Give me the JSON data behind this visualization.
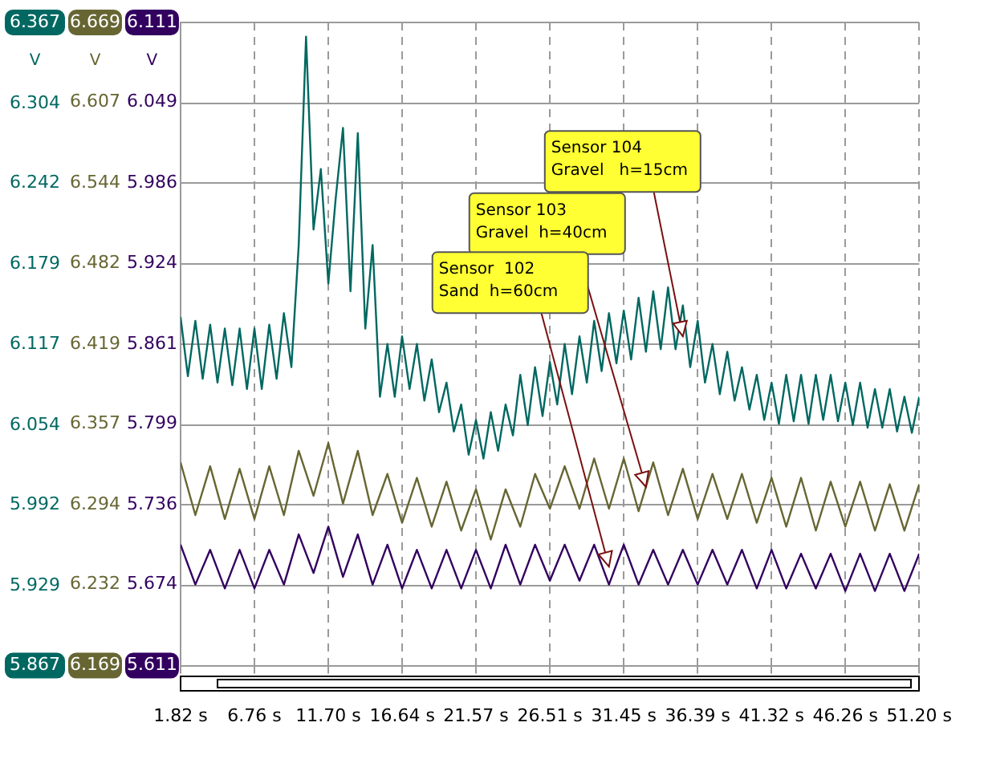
{
  "chart_data": {
    "type": "line",
    "x": [
      1.82,
      2.31,
      2.81,
      3.3,
      3.8,
      4.29,
      4.78,
      5.28,
      5.77,
      6.26,
      6.76,
      7.25,
      7.75,
      8.24,
      8.73,
      9.23,
      9.72,
      10.21,
      10.71,
      11.2,
      11.7,
      12.19,
      12.68,
      13.18,
      13.67,
      14.17,
      14.66,
      15.15,
      15.65,
      16.14,
      16.63,
      17.13,
      17.62,
      18.12,
      18.61,
      19.1,
      19.6,
      20.09,
      20.58,
      21.08,
      21.57,
      22.07,
      22.56,
      23.05,
      23.55,
      24.04,
      24.53,
      25.03,
      25.52,
      26.02,
      26.51,
      27.0,
      27.5,
      27.99,
      28.49,
      28.98,
      29.47,
      29.97,
      30.46,
      30.96,
      31.45,
      31.94,
      32.44,
      32.93,
      33.42,
      33.92,
      34.41,
      34.91,
      35.4,
      35.89,
      36.39,
      36.88,
      37.38,
      37.87,
      38.37,
      38.86,
      39.35,
      39.85,
      40.34,
      40.84,
      41.33,
      41.82,
      42.31,
      42.81,
      43.3,
      43.8,
      44.29,
      44.78,
      45.28,
      45.77,
      46.26,
      46.76,
      47.25,
      47.75,
      48.24,
      48.73,
      49.23,
      49.72,
      50.21,
      50.71,
      51.2
    ],
    "series": [
      {
        "color": "#006861",
        "values": [
          6.138,
          6.092,
          6.135,
          6.09,
          6.132,
          6.087,
          6.129,
          6.085,
          6.129,
          6.082,
          6.129,
          6.082,
          6.132,
          6.09,
          6.141,
          6.099,
          6.194,
          6.356,
          6.206,
          6.253,
          6.164,
          6.23,
          6.285,
          6.158,
          6.281,
          6.129,
          6.194,
          6.076,
          6.117,
          6.076,
          6.123,
          6.082,
          6.117,
          6.073,
          6.105,
          6.064,
          6.087,
          6.049,
          6.07,
          6.031,
          6.058,
          6.028,
          6.064,
          6.034,
          6.07,
          6.046,
          6.093,
          6.054,
          6.099,
          6.061,
          6.103,
          6.07,
          6.117,
          6.078,
          6.123,
          6.087,
          6.135,
          6.096,
          6.141,
          6.102,
          6.143,
          6.105,
          6.153,
          6.111,
          6.158,
          6.113,
          6.161,
          6.113,
          6.147,
          6.099,
          6.135,
          6.087,
          6.117,
          6.078,
          6.111,
          6.073,
          6.099,
          6.066,
          6.093,
          6.058,
          6.087,
          6.055,
          6.093,
          6.057,
          6.093,
          6.055,
          6.093,
          6.058,
          6.093,
          6.057,
          6.087,
          6.054,
          6.087,
          6.052,
          6.082,
          6.052,
          6.082,
          6.049,
          6.076,
          6.048,
          6.076
        ]
      },
      {
        "color": "#676633",
        "axis": "y2",
        "x": [
          1.82,
          2.81,
          3.8,
          4.78,
          5.77,
          6.76,
          7.75,
          8.73,
          9.72,
          10.71,
          11.7,
          12.68,
          13.67,
          14.66,
          15.65,
          16.63,
          17.62,
          18.61,
          19.6,
          20.58,
          21.57,
          22.56,
          23.55,
          24.53,
          25.52,
          26.51,
          27.5,
          28.49,
          29.47,
          30.46,
          31.45,
          32.44,
          33.42,
          34.41,
          35.4,
          36.39,
          37.38,
          38.37,
          39.35,
          40.34,
          41.33,
          42.31,
          43.3,
          44.29,
          45.28,
          46.26,
          47.25,
          48.24,
          49.23,
          50.21,
          51.2
        ],
        "values": [
          6.327,
          6.286,
          6.324,
          6.283,
          6.322,
          6.283,
          6.324,
          6.286,
          6.336,
          6.301,
          6.342,
          6.295,
          6.336,
          6.286,
          6.318,
          6.28,
          6.315,
          6.277,
          6.312,
          6.274,
          6.306,
          6.267,
          6.306,
          6.277,
          6.318,
          6.291,
          6.324,
          6.291,
          6.33,
          6.291,
          6.33,
          6.289,
          6.327,
          6.286,
          6.322,
          6.283,
          6.318,
          6.283,
          6.318,
          6.28,
          6.315,
          6.277,
          6.315,
          6.274,
          6.312,
          6.277,
          6.312,
          6.274,
          6.31,
          6.274,
          6.31
        ]
      },
      {
        "color": "#32005f",
        "axis": "y3",
        "x": [
          1.82,
          2.81,
          3.8,
          4.78,
          5.77,
          6.76,
          7.75,
          8.73,
          9.72,
          10.71,
          11.7,
          12.68,
          13.67,
          14.66,
          15.65,
          16.63,
          17.62,
          18.61,
          19.6,
          20.58,
          21.57,
          22.56,
          23.55,
          24.53,
          25.52,
          26.51,
          27.5,
          28.49,
          29.47,
          30.46,
          31.45,
          32.44,
          33.42,
          34.41,
          35.4,
          36.39,
          37.38,
          38.37,
          39.35,
          40.34,
          41.33,
          42.31,
          43.3,
          44.29,
          45.28,
          46.26,
          47.25,
          48.24,
          49.23,
          50.21,
          51.2
        ],
        "values": [
          5.705,
          5.674,
          5.701,
          5.671,
          5.701,
          5.671,
          5.701,
          5.674,
          5.713,
          5.683,
          5.719,
          5.68,
          5.713,
          5.674,
          5.705,
          5.671,
          5.701,
          5.671,
          5.701,
          5.671,
          5.701,
          5.671,
          5.705,
          5.674,
          5.705,
          5.677,
          5.705,
          5.677,
          5.705,
          5.674,
          5.705,
          5.674,
          5.701,
          5.674,
          5.701,
          5.674,
          5.701,
          5.674,
          5.701,
          5.671,
          5.701,
          5.671,
          5.698,
          5.671,
          5.698,
          5.669,
          5.698,
          5.669,
          5.698,
          5.669,
          5.698
        ]
      }
    ],
    "xlim": [
      1.82,
      51.2
    ],
    "xticks": [
      {
        "value": 1.82,
        "label": "1.82 s"
      },
      {
        "value": 6.76,
        "label": "6.76 s"
      },
      {
        "value": 11.7,
        "label": "11.70 s"
      },
      {
        "value": 16.64,
        "label": "16.64 s"
      },
      {
        "value": 21.57,
        "label": "21.57 s"
      },
      {
        "value": 26.51,
        "label": "26.51 s"
      },
      {
        "value": 31.45,
        "label": "31.45 s"
      },
      {
        "value": 36.39,
        "label": "36.39 s"
      },
      {
        "value": 41.32,
        "label": "41.32 s"
      },
      {
        "value": 46.26,
        "label": "46.26 s"
      },
      {
        "value": 51.2,
        "label": "51.20 s"
      }
    ],
    "ylim": [
      5.867,
      6.367
    ],
    "yticks": [
      5.867,
      5.929,
      5.992,
      6.054,
      6.117,
      6.179,
      6.242,
      6.304,
      6.367
    ],
    "y2lim": [
      6.169,
      6.669
    ],
    "y2ticks": [
      6.169,
      6.232,
      6.294,
      6.357,
      6.419,
      6.482,
      6.544,
      6.607,
      6.669
    ],
    "y3lim": [
      5.611,
      6.111
    ],
    "y3ticks": [
      5.611,
      5.674,
      5.736,
      5.799,
      5.861,
      5.924,
      5.986,
      6.049,
      6.111
    ],
    "ylabel": "V",
    "y2label": "V",
    "y3label": "V",
    "grid": true,
    "annotations": [
      {
        "text": "Sensor 104\nGravel   h=15cm",
        "x": 35.4,
        "y": 6.123
      },
      {
        "text": "Sensor 103\nGravel  h=40cm",
        "x": 32.93,
        "y": 6.006
      },
      {
        "text": "Sensor  102\nSand  h=60cm",
        "x": 30.46,
        "y": 5.944
      }
    ]
  }
}
